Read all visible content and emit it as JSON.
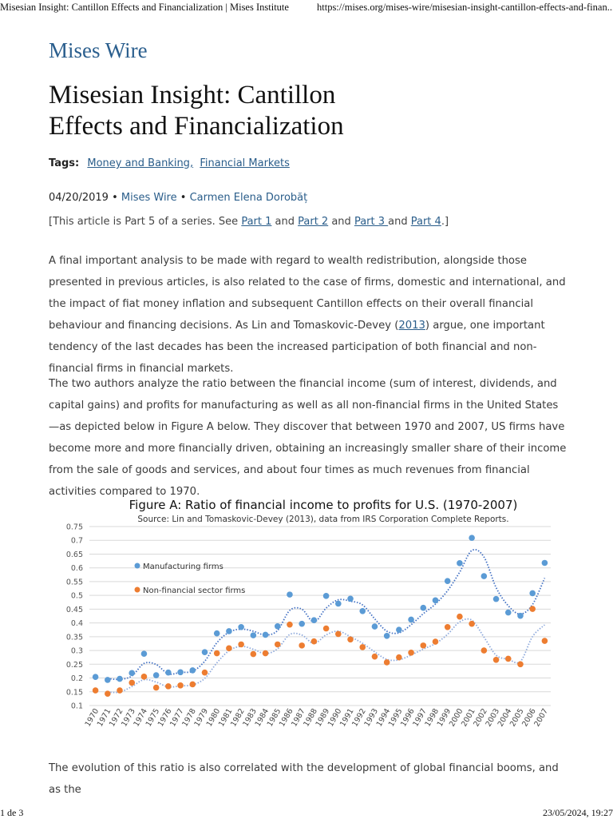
{
  "print_header": {
    "title": "Misesian Insight: Cantillon Effects and Financialization | Mises Institute",
    "url": "https://mises.org/mises-wire/misesian-insight-cantillon-effects-and-finan..."
  },
  "site_name": "Mises Wire",
  "article": {
    "title": "Misesian Insight: Cantillon Effects and Financialization",
    "tags_label": "Tags:",
    "tags": [
      "Money and Banking,",
      "Financial Markets"
    ],
    "date": "04/20/2019",
    "separator": " • ",
    "section": "Mises Wire",
    "author": "Carmen Elena Dorobăț",
    "series_note": {
      "prefix": "[This article is Part 5 of a series. See ",
      "part1": "Part 1",
      "and1": " and ",
      "part2": "Part 2",
      "and2": " and ",
      "part3": "Part 3 ",
      "and3": "and ",
      "part4": "Part 4",
      "suffix": ".]"
    },
    "p1": {
      "before": "A final important analysis to be made with regard to wealth redistribution, alongside those presented in previous articles, is also related to the case of firms, domestic and international, and the impact of fiat money inflation and subsequent Cantillon effects on their overall financial behaviour and financing decisions. As Lin and Tomaskovic-Devey (",
      "link": "2013",
      "after": ") argue, one important tendency of the last decades has been the increased participation of both financial and non-financial firms in financial markets."
    },
    "p2": "The two authors analyze the ratio between the financial income (sum of interest, dividends, and capital gains) and profits for manufacturing as well as all non-financial firms in the United States—as depicted below in Figure A below. They discover that between 1970 and 2007, US firms have become more and more financially driven, obtaining an increasingly smaller share of their income from the sale of goods and services, and about four times as much revenues from financial activities compared to 1970.",
    "p3": "The evolution of this ratio is also correlated with the development of global financial booms, and as the"
  },
  "chart_data": {
    "type": "scatter",
    "title": "Figure A: Ratio of financial income to profits for U.S. (1970-2007)",
    "subtitle": "Source: Lin and Tomaskovic-Devey (2013), data from IRS Corporation Complete Reports.",
    "x": [
      "1970",
      "1971",
      "1972",
      "1973",
      "1974",
      "1975",
      "1976",
      "1977",
      "1978",
      "1979",
      "1980",
      "1981",
      "1982",
      "1983",
      "1984",
      "1985",
      "1986",
      "1987",
      "1988",
      "1989",
      "1990",
      "1991",
      "1992",
      "1993",
      "1994",
      "1995",
      "1996",
      "1997",
      "1998",
      "1999",
      "2000",
      "2001",
      "2002",
      "2003",
      "2004",
      "2005",
      "2006",
      "2007"
    ],
    "ylim": [
      0.1,
      0.75
    ],
    "yticks": [
      "0.1",
      "0.15",
      "0.2",
      "0.25",
      "0.3",
      "0.35",
      "0.4",
      "0.45",
      "0.5",
      "0.55",
      "0.6",
      "0.65",
      "0.7",
      "0.75"
    ],
    "grid": true,
    "legend_position": "top-left",
    "trendline": "dotted moving average",
    "series": [
      {
        "name": "Manufacturing firms",
        "color": "#5b9bd5",
        "trend_color": "#4472c4",
        "values": [
          0.204,
          0.193,
          0.197,
          0.218,
          0.288,
          0.21,
          0.22,
          0.221,
          0.228,
          0.294,
          0.362,
          0.37,
          0.385,
          0.355,
          0.357,
          0.388,
          0.503,
          0.397,
          0.41,
          0.498,
          0.47,
          0.488,
          0.443,
          0.387,
          0.353,
          0.375,
          0.412,
          0.455,
          0.482,
          0.552,
          0.617,
          0.709,
          0.57,
          0.487,
          0.438,
          0.426,
          0.508,
          0.618
        ]
      },
      {
        "name": "Non-financial sector firms",
        "color": "#ed7d31",
        "trend_color": "#8faadc",
        "values": [
          0.155,
          0.143,
          0.155,
          0.183,
          0.205,
          0.165,
          0.17,
          0.173,
          0.177,
          0.22,
          0.29,
          0.308,
          0.322,
          0.287,
          0.29,
          0.322,
          0.394,
          0.318,
          0.333,
          0.38,
          0.36,
          0.34,
          0.312,
          0.278,
          0.257,
          0.275,
          0.292,
          0.318,
          0.332,
          0.385,
          0.423,
          0.397,
          0.3,
          0.266,
          0.27,
          0.25,
          0.451,
          0.335
        ]
      }
    ]
  },
  "print_footer": {
    "page": "1 de 3",
    "datetime": "23/05/2024, 19:27"
  }
}
